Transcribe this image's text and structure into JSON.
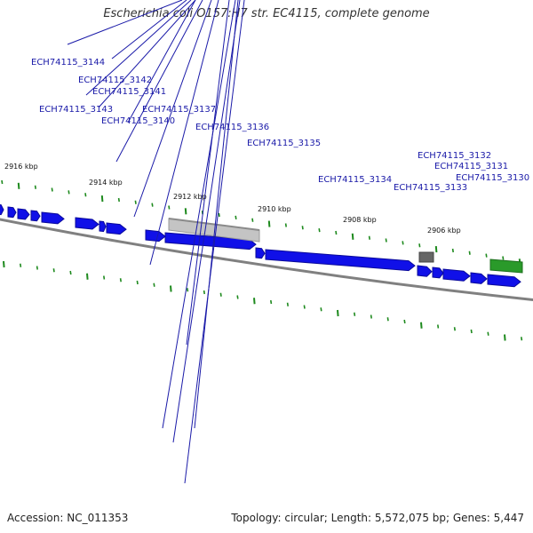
{
  "title": "Escherichia coli O157:H7 str. EC4115, complete genome",
  "footer": {
    "accession_label": "Accession: NC_011353",
    "summary": "Topology: circular; Length: 5,572,075 bp; Genes: 5,447"
  },
  "colors": {
    "forward_gene": "#1010e8",
    "pseudo_gene": "#c4c4c4",
    "small_dark": "#666666",
    "rna_gene": "#2a9a2a",
    "backbone": "#808080",
    "tick": "#1e8a1e",
    "label": "#1a1aa8"
  },
  "scale_labels": [
    "2916 kbp",
    "2914 kbp",
    "2912 kbp",
    "2910 kbp",
    "2908 kbp",
    "2906 kbp"
  ],
  "gene_labels": [
    "ECH74115_3144",
    "ECH74115_3142",
    "ECH74115_3141",
    "ECH74115_3143",
    "ECH74115_3137",
    "ECH74115_3140",
    "ECH74115_3136",
    "ECH74115_3135",
    "ECH74115_3132",
    "ECH74115_3131",
    "ECH74115_3134",
    "ECH74115_3130",
    "ECH74115_3133"
  ]
}
